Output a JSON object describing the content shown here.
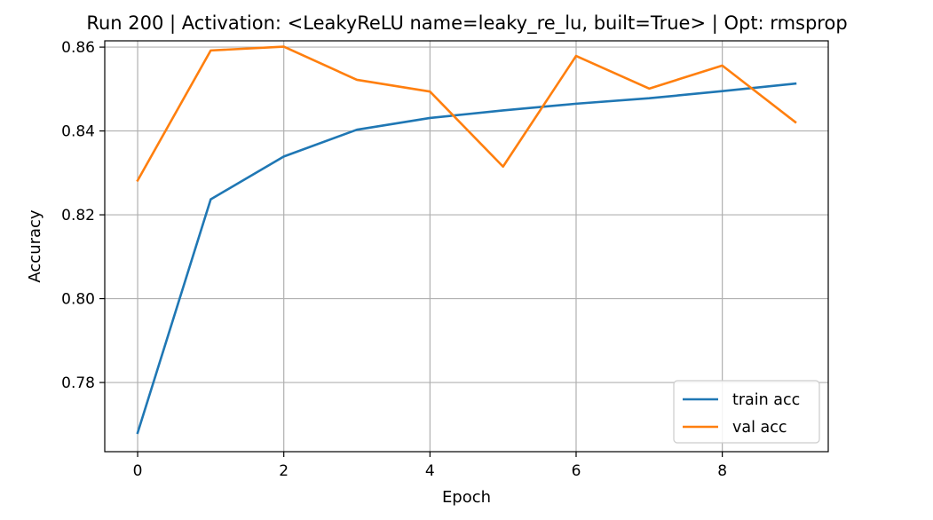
{
  "chart_data": {
    "type": "line",
    "title": "Run 200 | Activation: <LeakyReLU name=leaky_re_lu, built=True> | Opt: rmsprop",
    "xlabel": "Epoch",
    "ylabel": "Accuracy",
    "xlim": [
      -0.45,
      9.45
    ],
    "ylim": [
      0.7635,
      0.8615
    ],
    "x_ticks": [
      0,
      2,
      4,
      6,
      8
    ],
    "y_ticks": [
      0.78,
      0.8,
      0.82,
      0.84,
      0.86
    ],
    "x_tick_labels": [
      "0",
      "2",
      "4",
      "6",
      "8"
    ],
    "y_tick_labels": [
      "0.78",
      "0.80",
      "0.82",
      "0.84",
      "0.86"
    ],
    "grid": true,
    "legend_position": "lower right",
    "x": [
      0,
      1,
      2,
      3,
      4,
      5,
      6,
      7,
      8,
      9
    ],
    "series": [
      {
        "name": "train acc",
        "color": "#1f77b4",
        "values": [
          0.768,
          0.8237,
          0.8339,
          0.8403,
          0.8431,
          0.8449,
          0.8465,
          0.8478,
          0.8495,
          0.8513
        ]
      },
      {
        "name": "val acc",
        "color": "#ff7f0e",
        "values": [
          0.8282,
          0.8592,
          0.8601,
          0.8522,
          0.8494,
          0.8315,
          0.8579,
          0.8501,
          0.8556,
          0.8421
        ]
      }
    ]
  }
}
